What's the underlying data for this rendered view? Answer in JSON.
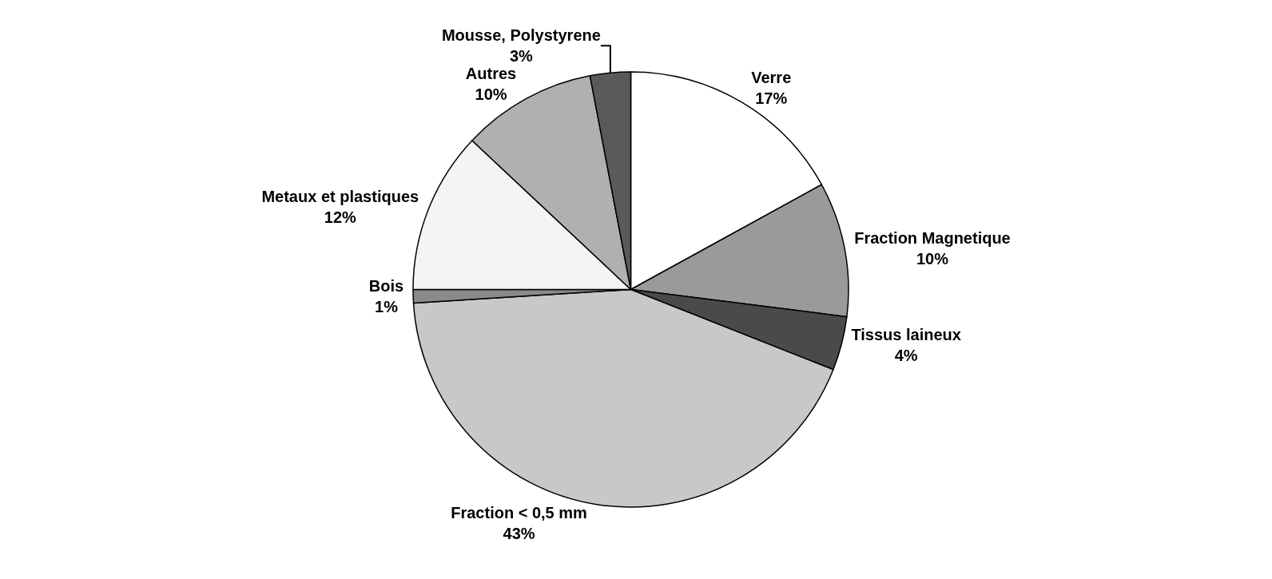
{
  "chart_data": {
    "type": "pie",
    "categories": [
      "Verre",
      "Fraction Magnetique",
      "Tissus laineux",
      "Fraction < 0,5 mm",
      "Bois",
      "Metaux et plastiques",
      "Autres",
      "Mousse, Polystyrene"
    ],
    "values": [
      17,
      10,
      4,
      43,
      1,
      12,
      10,
      3
    ],
    "value_labels": [
      "17%",
      "10%",
      "4%",
      "43%",
      "1%",
      "12%",
      "10%",
      "3%"
    ],
    "colors": [
      "#ffffff",
      "#9a9a9a",
      "#4a4a4a",
      "#c8c8c8",
      "#8a8a8a",
      "#f4f4f4",
      "#b0b0b0",
      "#5a5a5a"
    ],
    "legend": false
  }
}
